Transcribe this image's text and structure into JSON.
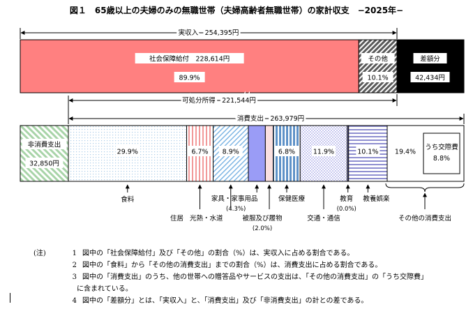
{
  "chart_data": {
    "type": "stacked-bar",
    "title": "図１　65歳以上の夫婦のみの無職世帯（夫婦高齢者無職世帯）の家計収支　−2025年−",
    "unit": "円",
    "income": {
      "label": "実収入　254,395円",
      "total": 254395,
      "segments": [
        {
          "key": "social",
          "name": "社会保障給付",
          "value": 228614,
          "value_label": "社会保障給付　228,614円",
          "pct_label": "89.9%",
          "color": "#ff8080"
        },
        {
          "key": "other",
          "name": "その他",
          "value": 25781,
          "value_label": "その他",
          "pct_label": "10.1%",
          "color": "#a0a0a0"
        },
        {
          "key": "deficit",
          "name": "差額分",
          "value": 42434,
          "value_label": "差額分",
          "amount_label": "42,434円",
          "color": "#000000"
        }
      ]
    },
    "disposable": {
      "label": "可処分所得　221,544円",
      "value": 221544
    },
    "consumption": {
      "label": "消費支出　263,979円",
      "total": 263979,
      "segments": [
        {
          "key": "food",
          "name": "食料",
          "pct": 29.9,
          "pct_label": "29.9%",
          "color": "#cfe3f5"
        },
        {
          "key": "housing",
          "name": "住居",
          "pct": 6.7,
          "pct_label": "6.7%",
          "color": "#f4a0a0"
        },
        {
          "key": "utilities",
          "name": "光熱・水道",
          "pct": 8.9,
          "pct_label": "8.9%",
          "color": "#9cc8ec"
        },
        {
          "key": "furniture",
          "name": "家具・家事用品",
          "pct": 4.3,
          "pct_label": "",
          "color": "#9a9cf6"
        },
        {
          "key": "clothing",
          "name": "被服及び履物",
          "pct": 2.0,
          "pct_label": "",
          "color": "#f9d4d4"
        },
        {
          "key": "health",
          "name": "保健医療",
          "pct": 6.8,
          "pct_label": "6.8%",
          "color": "#6f9fd0"
        },
        {
          "key": "transport",
          "name": "交通・通信",
          "pct": 11.9,
          "pct_label": "11.9%",
          "color": "#d4d4f6"
        },
        {
          "key": "education",
          "name": "教育",
          "pct": 0.0,
          "pct_label": "",
          "color": "#a0a0e0"
        },
        {
          "key": "culture",
          "name": "教養娯楽",
          "pct": 10.1,
          "pct_label": "10.1%",
          "color": "#9a9ad4"
        },
        {
          "key": "others",
          "name": "その他の消費支出",
          "pct": 19.4,
          "pct_label": "19.4%",
          "color": "#ffffff"
        }
      ],
      "inner_box": {
        "label": "うち交際費",
        "pct_label": "8.8%"
      }
    },
    "nonconsumption": {
      "name": "非消費支出",
      "amount_label": "32,850円",
      "value": 32850,
      "color": "#c4e0c4"
    },
    "callouts": {
      "food": "食料",
      "housing": "住居",
      "utilities": "光熱・水道",
      "furniture": "家具・家事用品",
      "furniture_pct": "(4.3%)",
      "clothing": "被服及び履物",
      "clothing_pct": "(2.0%)",
      "health": "保健医療",
      "transport": "交通・通信",
      "education": "教育",
      "education_pct": "(0.0%)",
      "culture": "教養娯楽",
      "others": "その他の消費支出"
    }
  },
  "notes": {
    "label": "(注)",
    "items": [
      {
        "num": "1",
        "text": "図中の「社会保障給付」及び「その他」の割合（%）は、実収入に占める割合である。"
      },
      {
        "num": "2",
        "text": "図中の「食料」から「その他の消費支出」までの割合（%）は、消費支出に占める割合である。"
      },
      {
        "num": "3",
        "text": "図中の「消費支出」のうち、他の世帯への贈答品やサービスの支出は、「その他の消費支出」の「うち交際費」",
        "cont": "に含まれている。"
      },
      {
        "num": "4",
        "text": "図中の「差額分」とは、「実収入」と、「消費支出」及び「非消費支出」の計との差である。"
      }
    ]
  }
}
